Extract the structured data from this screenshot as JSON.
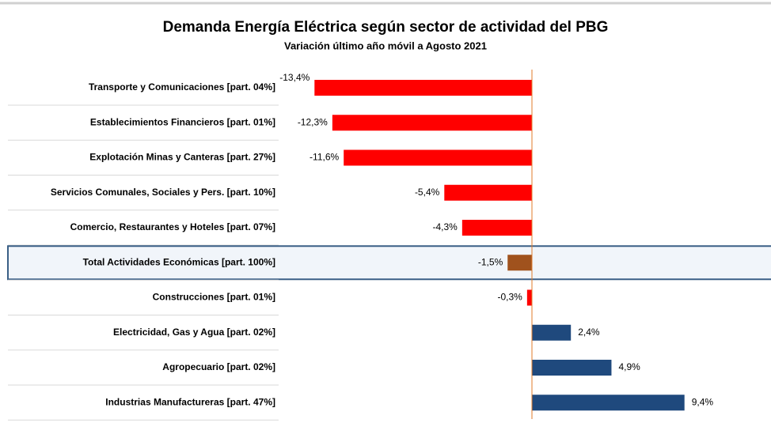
{
  "chart_data": {
    "type": "bar",
    "orientation": "horizontal",
    "title": "Demanda Energía Eléctrica según sector de actividad del PBG",
    "subtitle": "Variación último año móvil a Agosto 2021",
    "categories": [
      "Transporte y Comunicaciones [part. 04%]",
      "Establecimientos Financieros [part. 01%]",
      "Explotación Minas y Canteras [part. 27%]",
      "Servicios Comunales, Sociales y Pers. [part. 10%]",
      "Comercio, Restaurantes y Hoteles [part. 07%]",
      "Total Actividades Económicas [part. 100%]",
      "Construcciones [part. 01%]",
      "Electricidad, Gas y Agua [part. 02%]",
      "Agropecuario [part. 02%]",
      "Industrias Manufactureras [part. 47%]"
    ],
    "values": [
      -13.4,
      -12.3,
      -11.6,
      -5.4,
      -4.3,
      -1.5,
      -0.3,
      2.4,
      4.9,
      9.4
    ],
    "value_labels": [
      "-13,4%",
      "-12,3%",
      "-11,6%",
      "-5,4%",
      "-4,3%",
      "-1,5%",
      "-0,3%",
      "2,4%",
      "4,9%",
      "9,4%"
    ],
    "colors": [
      "#ff0000",
      "#ff0000",
      "#ff0000",
      "#ff0000",
      "#ff0000",
      "#a0521d",
      "#ff0000",
      "#1f497d",
      "#1f497d",
      "#1f497d"
    ]
  }
}
